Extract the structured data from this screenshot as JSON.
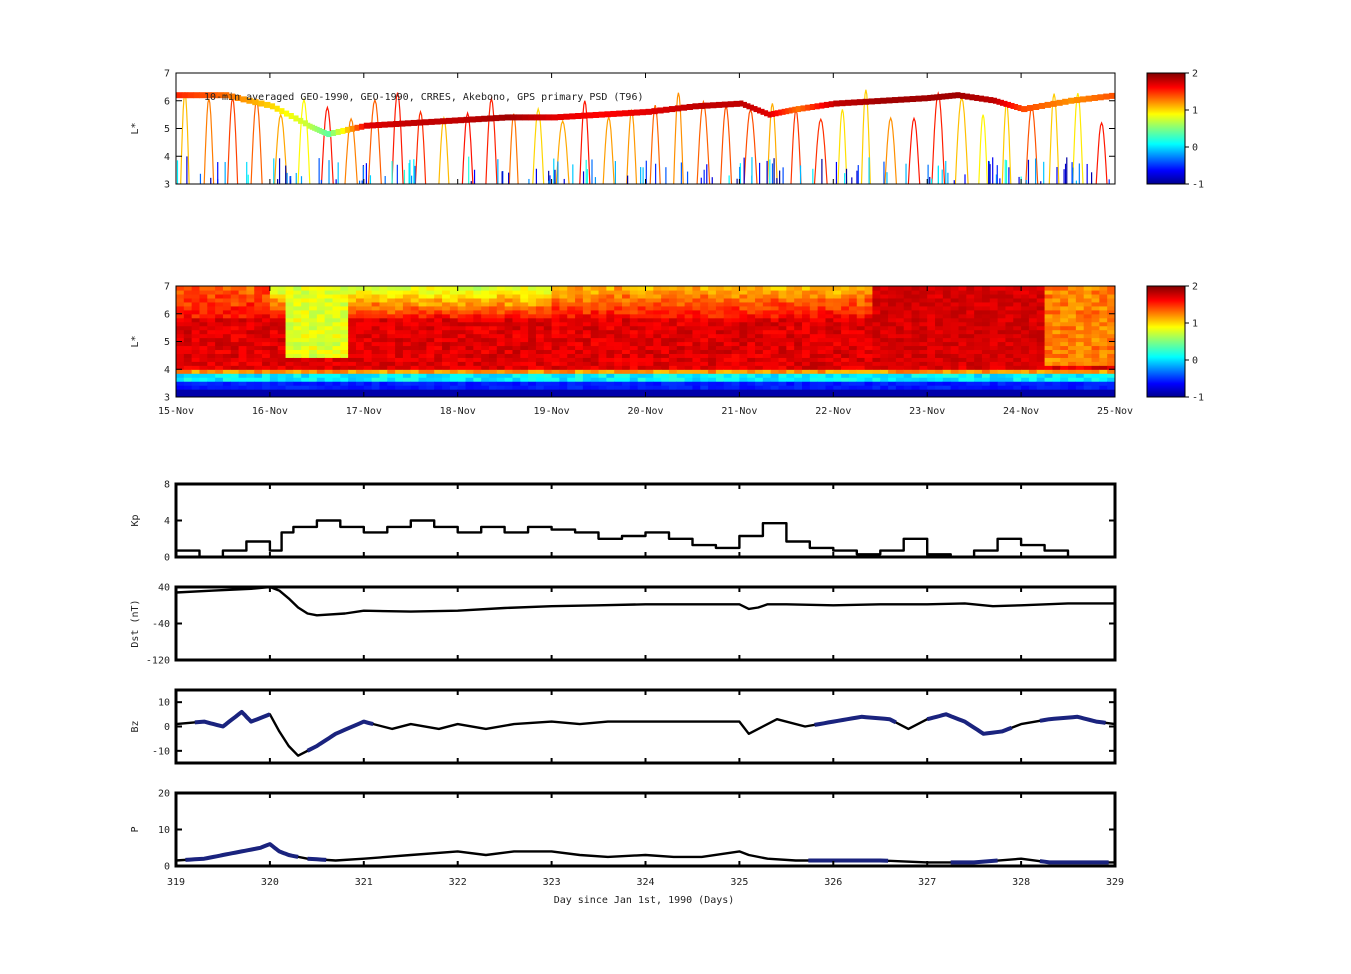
{
  "figure": {
    "title": "10-min averaged GEO-1990, GEO-1990, CRRES, Akebono, GPS  primary PSD (T96)",
    "xlabel": "Day since Jan 1st, 1990 (Days)"
  },
  "colors": {
    "line": "#000000",
    "overlay": "#1a237e",
    "frame": "#000000"
  },
  "chart_data": [
    {
      "type": "scatter",
      "title": "10-min averaged GEO-1990, GEO-1990, CRRES, Akebono, GPS  primary PSD (T96)",
      "ylabel": "L*",
      "ylim": [
        3,
        7
      ],
      "yticks": [
        "3",
        "4",
        "5",
        "6",
        "7"
      ],
      "xlim": [
        319,
        329
      ],
      "colorbar": {
        "range": [
          -1,
          2
        ],
        "ticks": [
          "2",
          "1",
          "0",
          "-1"
        ],
        "colormap": "jet"
      },
      "geo_track": {
        "x": [
          319.0,
          319.5,
          320.0,
          320.4,
          320.6,
          321.0,
          321.5,
          322.0,
          322.5,
          323.0,
          323.5,
          324.0,
          324.5,
          325.0,
          325.3,
          325.6,
          326.0,
          326.5,
          327.0,
          327.3,
          327.7,
          328.0,
          328.5,
          329.0
        ],
        "y": [
          6.2,
          6.2,
          5.8,
          5.1,
          4.8,
          5.1,
          5.2,
          5.3,
          5.4,
          5.4,
          5.5,
          5.6,
          5.8,
          5.9,
          5.5,
          5.7,
          5.9,
          6.0,
          6.1,
          6.2,
          6.0,
          5.7,
          6.0,
          6.2
        ],
        "z": [
          1.5,
          1.3,
          1.0,
          0.7,
          0.4,
          1.7,
          1.8,
          1.8,
          1.9,
          1.7,
          1.6,
          1.7,
          1.8,
          1.8,
          1.7,
          1.3,
          1.8,
          1.9,
          1.9,
          1.9,
          1.8,
          1.4,
          1.2,
          1.4
        ]
      }
    },
    {
      "type": "heatmap",
      "ylabel": "L*",
      "ylim": [
        3,
        7
      ],
      "yticks": [
        "3",
        "4",
        "5",
        "6",
        "7"
      ],
      "xlim": [
        319,
        329
      ],
      "x_tick_labels": [
        "15-Nov",
        "16-Nov",
        "17-Nov",
        "18-Nov",
        "19-Nov",
        "20-Nov",
        "21-Nov",
        "22-Nov",
        "23-Nov",
        "24-Nov",
        "25-Nov"
      ],
      "colorbar": {
        "range": [
          -1,
          2
        ],
        "ticks": [
          "2",
          "1",
          "0",
          "-1"
        ],
        "colormap": "jet"
      }
    },
    {
      "type": "line",
      "ylabel": "Kp",
      "ylim": [
        0,
        8
      ],
      "yticks": [
        "0",
        "4",
        "8"
      ],
      "xlim": [
        319,
        329
      ],
      "x": [
        319.0,
        319.25,
        319.5,
        319.75,
        320.0,
        320.125,
        320.25,
        320.5,
        320.75,
        321.0,
        321.25,
        321.5,
        321.75,
        322.0,
        322.25,
        322.5,
        322.75,
        323.0,
        323.25,
        323.5,
        323.75,
        324.0,
        324.25,
        324.5,
        324.75,
        325.0,
        325.25,
        325.5,
        325.75,
        326.0,
        326.25,
        326.5,
        326.75,
        327.0,
        327.25,
        327.5,
        327.75,
        328.0,
        328.25,
        328.5,
        328.75,
        329.0
      ],
      "y": [
        0.7,
        0.0,
        0.7,
        1.7,
        0.7,
        2.7,
        3.3,
        4.0,
        3.3,
        2.7,
        3.3,
        4.0,
        3.3,
        2.7,
        3.3,
        2.7,
        3.3,
        3.0,
        2.7,
        2.0,
        2.3,
        2.7,
        2.0,
        1.3,
        1.0,
        2.3,
        3.7,
        1.7,
        1.0,
        0.7,
        0.3,
        0.7,
        2.0,
        0.3,
        0.0,
        0.7,
        2.0,
        1.3,
        0.7,
        0.0,
        0.0,
        0.7
      ]
    },
    {
      "type": "line",
      "ylabel": "Dst (nT)",
      "ylim": [
        -120,
        40
      ],
      "yticks": [
        "-120",
        "-40",
        "40"
      ],
      "xlim": [
        319,
        329
      ],
      "x": [
        319.0,
        319.4,
        319.8,
        320.0,
        320.1,
        320.2,
        320.3,
        320.4,
        320.5,
        320.8,
        321.0,
        321.5,
        322.0,
        322.5,
        323.0,
        323.5,
        324.0,
        324.5,
        325.0,
        325.1,
        325.2,
        325.3,
        325.5,
        326.0,
        326.5,
        327.0,
        327.4,
        327.7,
        328.0,
        328.5,
        329.0
      ],
      "y": [
        28,
        32,
        36,
        40,
        32,
        15,
        -5,
        -18,
        -22,
        -18,
        -12,
        -14,
        -12,
        -6,
        -2,
        0,
        2,
        2,
        2,
        -8,
        -5,
        2,
        2,
        0,
        2,
        2,
        4,
        -2,
        0,
        4,
        4
      ]
    },
    {
      "type": "line",
      "ylabel": "Bz",
      "ylim": [
        -15,
        15
      ],
      "yticks": [
        "-10",
        "0",
        "10"
      ],
      "xlim": [
        319,
        329
      ],
      "x": [
        319.0,
        319.3,
        319.5,
        319.7,
        319.8,
        320.0,
        320.1,
        320.2,
        320.3,
        320.5,
        320.7,
        321.0,
        321.3,
        321.5,
        321.8,
        322.0,
        322.3,
        322.6,
        323.0,
        323.3,
        323.6,
        324.0,
        324.3,
        324.6,
        325.0,
        325.1,
        325.2,
        325.4,
        325.7,
        326.0,
        326.3,
        326.6,
        326.8,
        327.0,
        327.2,
        327.4,
        327.6,
        327.8,
        328.0,
        328.3,
        328.6,
        328.8,
        329.0
      ],
      "y": [
        1,
        2,
        0,
        6,
        2,
        5,
        -2,
        -8,
        -12,
        -8,
        -3,
        2,
        -1,
        1,
        -1,
        1,
        -1,
        1,
        2,
        1,
        2,
        2,
        2,
        2,
        2,
        -3,
        -1,
        3,
        0,
        2,
        4,
        3,
        -1,
        3,
        5,
        2,
        -3,
        -2,
        1,
        3,
        4,
        2,
        1
      ]
    },
    {
      "type": "line",
      "ylabel": "P",
      "ylim": [
        0,
        20
      ],
      "yticks": [
        "0",
        "10",
        "20"
      ],
      "xlim": [
        319,
        329
      ],
      "x": [
        319.0,
        319.3,
        319.5,
        319.7,
        319.9,
        320.0,
        320.1,
        320.2,
        320.4,
        320.7,
        321.0,
        321.5,
        322.0,
        322.3,
        322.6,
        323.0,
        323.3,
        323.6,
        324.0,
        324.3,
        324.6,
        325.0,
        325.1,
        325.3,
        325.6,
        326.0,
        326.5,
        327.0,
        327.5,
        328.0,
        328.3,
        328.6,
        329.0
      ],
      "y": [
        1.5,
        2,
        3,
        4,
        5,
        6,
        4,
        3,
        2,
        1.5,
        2,
        3,
        4,
        3,
        4,
        4,
        3,
        2.5,
        3,
        2.5,
        2.5,
        4,
        3,
        2,
        1.5,
        1.5,
        1.5,
        1,
        1,
        2,
        1,
        1,
        1
      ]
    }
  ],
  "bottom_axis": {
    "ticks": [
      "319",
      "320",
      "321",
      "322",
      "323",
      "324",
      "325",
      "326",
      "327",
      "328",
      "329"
    ]
  }
}
